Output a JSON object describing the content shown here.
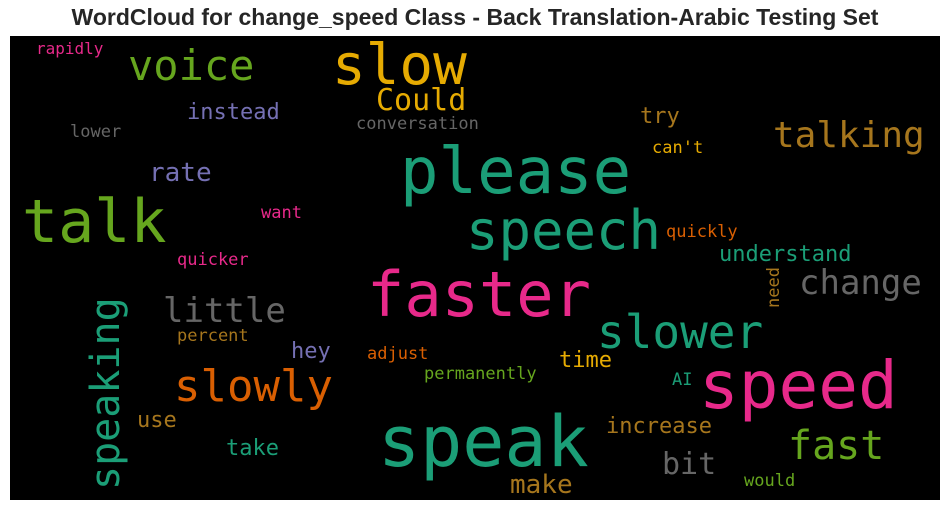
{
  "title": "WordCloud for change_speed Class - Back Translation-Arabic Testing Set",
  "colors": {
    "background": "#000000",
    "teal": "#1b9e77",
    "orange": "#d95f02",
    "purple": "#7570b3",
    "magenta": "#e7298a",
    "green": "#66a61e",
    "gold": "#e6ab02",
    "brown": "#a6761d",
    "gray": "#666666"
  },
  "words": [
    {
      "text": "slow",
      "color": "#e6ab02"
    },
    {
      "text": "voice",
      "color": "#66a61e"
    },
    {
      "text": "rapidly",
      "color": "#e7298a"
    },
    {
      "text": "Could",
      "color": "#e6ab02"
    },
    {
      "text": "instead",
      "color": "#7570b3"
    },
    {
      "text": "lower",
      "color": "#666666"
    },
    {
      "text": "conversation",
      "color": "#666666"
    },
    {
      "text": "try",
      "color": "#a6761d"
    },
    {
      "text": "talking",
      "color": "#a6761d"
    },
    {
      "text": "can't",
      "color": "#e6ab02"
    },
    {
      "text": "please",
      "color": "#1b9e77"
    },
    {
      "text": "rate",
      "color": "#7570b3"
    },
    {
      "text": "talk",
      "color": "#66a61e"
    },
    {
      "text": "want",
      "color": "#e7298a"
    },
    {
      "text": "speech",
      "color": "#1b9e77"
    },
    {
      "text": "quickly",
      "color": "#d95f02"
    },
    {
      "text": "understand",
      "color": "#1b9e77"
    },
    {
      "text": "quicker",
      "color": "#e7298a"
    },
    {
      "text": "faster",
      "color": "#e7298a"
    },
    {
      "text": "change",
      "color": "#666666"
    },
    {
      "text": "need",
      "color": "#a6761d"
    },
    {
      "text": "little",
      "color": "#666666"
    },
    {
      "text": "speaking",
      "color": "#1b9e77"
    },
    {
      "text": "slower",
      "color": "#1b9e77"
    },
    {
      "text": "percent",
      "color": "#a6761d"
    },
    {
      "text": "hey",
      "color": "#7570b3"
    },
    {
      "text": "adjust",
      "color": "#d95f02"
    },
    {
      "text": "time",
      "color": "#e6ab02"
    },
    {
      "text": "slowly",
      "color": "#d95f02"
    },
    {
      "text": "permanently",
      "color": "#66a61e"
    },
    {
      "text": "AI",
      "color": "#1b9e77"
    },
    {
      "text": "speed",
      "color": "#e7298a"
    },
    {
      "text": "use",
      "color": "#a6761d"
    },
    {
      "text": "speak",
      "color": "#1b9e77"
    },
    {
      "text": "increase",
      "color": "#a6761d"
    },
    {
      "text": "take",
      "color": "#1b9e77"
    },
    {
      "text": "fast",
      "color": "#66a61e"
    },
    {
      "text": "bit",
      "color": "#666666"
    },
    {
      "text": "make",
      "color": "#a6761d"
    },
    {
      "text": "would",
      "color": "#66a61e"
    }
  ]
}
